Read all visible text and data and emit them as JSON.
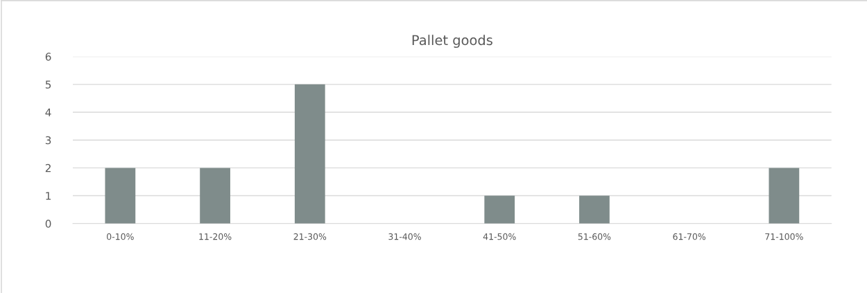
{
  "chart_data": {
    "type": "bar",
    "title": "Pallet goods",
    "categories": [
      "0-10%",
      "11-20%",
      "21-30%",
      "31-40%",
      "41-50%",
      "51-60%",
      "61-70%",
      "71-100%"
    ],
    "values": [
      2,
      2,
      5,
      0,
      1,
      1,
      0,
      2
    ],
    "color": "#7f8c8b",
    "ylim": [
      0,
      6
    ],
    "yticks": [
      0,
      1,
      2,
      3,
      4,
      5,
      6
    ],
    "grid": "y"
  }
}
